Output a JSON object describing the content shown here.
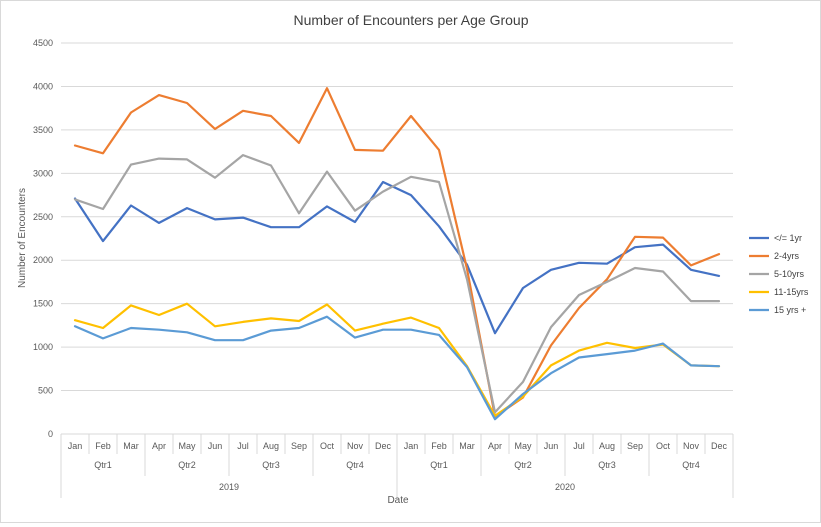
{
  "chart_data": {
    "type": "line",
    "title": "Number of Encounters per Age Group",
    "xlabel": "Date",
    "ylabel": "Number of Encounters",
    "ylim": [
      0,
      4500
    ],
    "yticks": [
      "0",
      "500",
      "1000",
      "1500",
      "2000",
      "2500",
      "3000",
      "3500",
      "4000",
      "4500"
    ],
    "grid": "horizontal",
    "legend_position": "right",
    "months": [
      "Jan",
      "Feb",
      "Mar",
      "Apr",
      "May",
      "Jun",
      "Jul",
      "Aug",
      "Sep",
      "Oct",
      "Nov",
      "Dec",
      "Jan",
      "Feb",
      "Mar",
      "Apr",
      "May",
      "Jun",
      "Jul",
      "Aug",
      "Sep",
      "Oct",
      "Nov",
      "Dec"
    ],
    "quarters": [
      "Qtr1",
      "Qtr2",
      "Qtr3",
      "Qtr4",
      "Qtr1",
      "Qtr2",
      "Qtr3",
      "Qtr4"
    ],
    "years": [
      "2019",
      "2020"
    ],
    "series": [
      {
        "name": "</= 1yr",
        "color": "#4472c4",
        "values": [
          2710,
          2220,
          2630,
          2430,
          2600,
          2470,
          2490,
          2380,
          2380,
          2620,
          2440,
          2900,
          2750,
          2390,
          1950,
          1160,
          1680,
          1890,
          1970,
          1960,
          2150,
          2180,
          1890,
          1820
        ]
      },
      {
        "name": "2-4yrs",
        "color": "#ed7d31",
        "values": [
          3320,
          3230,
          3700,
          3900,
          3810,
          3510,
          3720,
          3660,
          3350,
          3980,
          3270,
          3260,
          3660,
          3270,
          1900,
          200,
          420,
          1020,
          1450,
          1780,
          2270,
          2260,
          1940,
          2070
        ]
      },
      {
        "name": "5-10yrs",
        "color": "#a5a5a5",
        "values": [
          2700,
          2590,
          3100,
          3170,
          3160,
          2950,
          3210,
          3090,
          2540,
          3020,
          2570,
          2790,
          2960,
          2900,
          1780,
          250,
          600,
          1230,
          1600,
          1750,
          1910,
          1870,
          1530,
          1530
        ]
      },
      {
        "name": "11-15yrs",
        "color": "#ffc000",
        "values": [
          1310,
          1220,
          1480,
          1370,
          1500,
          1240,
          1290,
          1330,
          1300,
          1490,
          1190,
          1270,
          1340,
          1220,
          780,
          210,
          430,
          790,
          960,
          1050,
          990,
          1030,
          790,
          780
        ]
      },
      {
        "name": "15 yrs +",
        "color": "#5b9bd5",
        "values": [
          1240,
          1100,
          1220,
          1200,
          1170,
          1080,
          1080,
          1190,
          1220,
          1350,
          1110,
          1200,
          1200,
          1140,
          770,
          170,
          460,
          700,
          880,
          920,
          960,
          1040,
          790,
          780
        ]
      }
    ]
  }
}
